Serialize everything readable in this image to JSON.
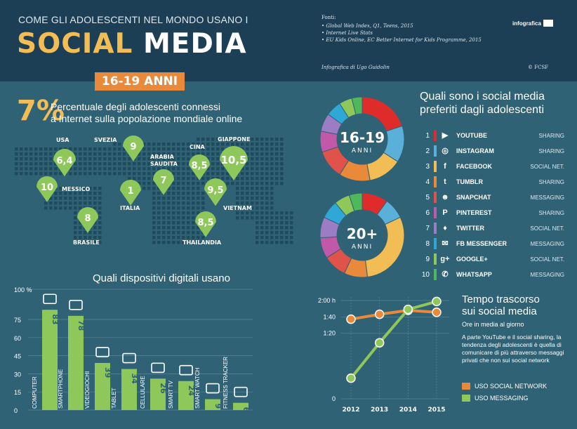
{
  "header": {
    "subtitle": "COME GLI ADOLESCENTI NEL MONDO USANO I",
    "title_part1": "SOCIAL",
    "title_part2": "MEDIA",
    "sources_heading": "Fonti:",
    "sources": [
      "• Global Web Index, Q1, Teens, 2015",
      "• Internet Live Stats",
      "• EU Kids Online, EC Better Internet for Kids Programme, 2015"
    ],
    "brand": "infografica",
    "author": "Infografica di Ugo Guidolin",
    "copyright": "© FCSF"
  },
  "age_badge": "16-19 ANNI",
  "percent": {
    "value": "7%",
    "line1": "Percentuale degli adolescenti connessi",
    "line2": "a Internet sulla popolazione mondiale online"
  },
  "map_pins": [
    {
      "country": "USA",
      "value": "6,4"
    },
    {
      "country": "MESSICO",
      "value": "10"
    },
    {
      "country": "BRASILE",
      "value": "8"
    },
    {
      "country": "SVEZIA",
      "value": "9"
    },
    {
      "country": "ITALIA",
      "value": "1"
    },
    {
      "country": "ARABIA SAUDITA",
      "country_lines": [
        "ARABIA",
        "SAUDITA"
      ],
      "value": "7"
    },
    {
      "country": "CINA",
      "value": "8,5"
    },
    {
      "country": "GIAPPONE",
      "value": "10,5"
    },
    {
      "country": "VIETNAM",
      "value": "9,5"
    },
    {
      "country": "THAILANDIA",
      "value": "8,5"
    }
  ],
  "devices_title": "Quali dispositivi digitali usano",
  "favorites_title_line1": "Quali sono i social media",
  "favorites_title_line2": "preferiti dagli adolescenti",
  "donut_labels": [
    {
      "big": "16-19",
      "small": "ANNI"
    },
    {
      "big": "20+",
      "small": "ANNI"
    }
  ],
  "social_list": [
    {
      "rank": "1",
      "name": "YOUTUBE",
      "category": "SHARING",
      "color": "#e02b2b",
      "icon": "youtube-icon",
      "glyph": "▶"
    },
    {
      "rank": "2",
      "name": "INSTAGRAM",
      "category": "SHARING",
      "color": "#5ab0d8",
      "icon": "instagram-icon",
      "glyph": "◎"
    },
    {
      "rank": "3",
      "name": "FACEBOOK",
      "category": "SOCIAL NET.",
      "color": "#f2bd55",
      "icon": "facebook-icon",
      "glyph": "f"
    },
    {
      "rank": "4",
      "name": "TUMBLR",
      "category": "SHARING",
      "color": "#e9893a",
      "icon": "tumblr-icon",
      "glyph": "t"
    },
    {
      "rank": "5",
      "name": "SNAPCHAT",
      "category": "MESSAGING",
      "color": "#e0534a",
      "icon": "snapchat-icon",
      "glyph": "☻"
    },
    {
      "rank": "6",
      "name": "PINTEREST",
      "category": "SHARING",
      "color": "#c158a8",
      "icon": "pinterest-icon",
      "glyph": "P"
    },
    {
      "rank": "7",
      "name": "TWITTER",
      "category": "SOCIAL NET.",
      "color": "#9c7cc4",
      "icon": "twitter-icon",
      "glyph": "♦"
    },
    {
      "rank": "8",
      "name": "FB MESSENGER",
      "category": "MESSAGING",
      "color": "#2fa8d8",
      "icon": "messenger-icon",
      "glyph": "✉"
    },
    {
      "rank": "9",
      "name": "GOOGLE+",
      "category": "SOCIAL NET.",
      "color": "#8fc85a",
      "icon": "googleplus-icon",
      "glyph": "g+"
    },
    {
      "rank": "10",
      "name": "WHATSAPP",
      "category": "MESSAGING",
      "color": "#4fb85a",
      "icon": "whatsapp-icon",
      "glyph": "✆"
    }
  ],
  "time_title_line1": "Tempo trascorso",
  "time_title_line2": "sui social media",
  "time_subtitle": "Ore in media al giorno",
  "time_description": "A parte YouTube e il social sharing, la tendenza degli adolescenti è quella di comunicare di più attraverso messaggi privati che non sui social network",
  "chart_data": [
    {
      "type": "bar",
      "title": "Quali dispositivi digitali usano",
      "categories": [
        "COMPUTER",
        "SMARTPHONE",
        "VIDEOGIOCHI",
        "TABLET",
        "CELLULARE",
        "SMART TV",
        "SMART WATCH",
        "FITNESS TRACKER"
      ],
      "values": [
        83,
        78,
        39,
        34,
        26,
        24,
        9,
        6
      ],
      "yticks": [
        "0",
        "15",
        "30",
        "45",
        "60",
        "75",
        "100 %"
      ],
      "ylim": [
        0,
        100
      ],
      "bar_color": "#8fc85a"
    },
    {
      "type": "pie",
      "center_label": "16-19 ANNI",
      "categories": [
        "YOUTUBE",
        "INSTAGRAM",
        "FACEBOOK",
        "TUMBLR",
        "SNAPCHAT",
        "PINTEREST",
        "TWITTER",
        "FB MESSENGER",
        "GOOGLE+",
        "WHATSAPP"
      ],
      "values": [
        20,
        14,
        13,
        12,
        11,
        8,
        7,
        6,
        5,
        4
      ]
    },
    {
      "type": "pie",
      "center_label": "20+ ANNI",
      "categories": [
        "YOUTUBE",
        "INSTAGRAM",
        "FACEBOOK",
        "TUMBLR",
        "SNAPCHAT",
        "PINTEREST",
        "TWITTER",
        "FB MESSENGER",
        "GOOGLE+",
        "WHATSAPP"
      ],
      "values": [
        10,
        8,
        30,
        9,
        9,
        8,
        8,
        7,
        6,
        5
      ]
    },
    {
      "type": "line",
      "title": "Tempo trascorso sui social media",
      "x": [
        "2012",
        "2013",
        "2014",
        "2015"
      ],
      "yticks": [
        "0",
        "1:20",
        "1:40",
        "2:00 h"
      ],
      "series": [
        {
          "name": "USO SOCIAL NETWORK",
          "color": "#e9893a",
          "values": [
            1.62,
            1.72,
            1.8,
            1.76
          ]
        },
        {
          "name": "USO MESSAGING",
          "color": "#8fc85a",
          "values": [
            0.42,
            1.14,
            1.82,
            1.98
          ]
        }
      ]
    }
  ]
}
